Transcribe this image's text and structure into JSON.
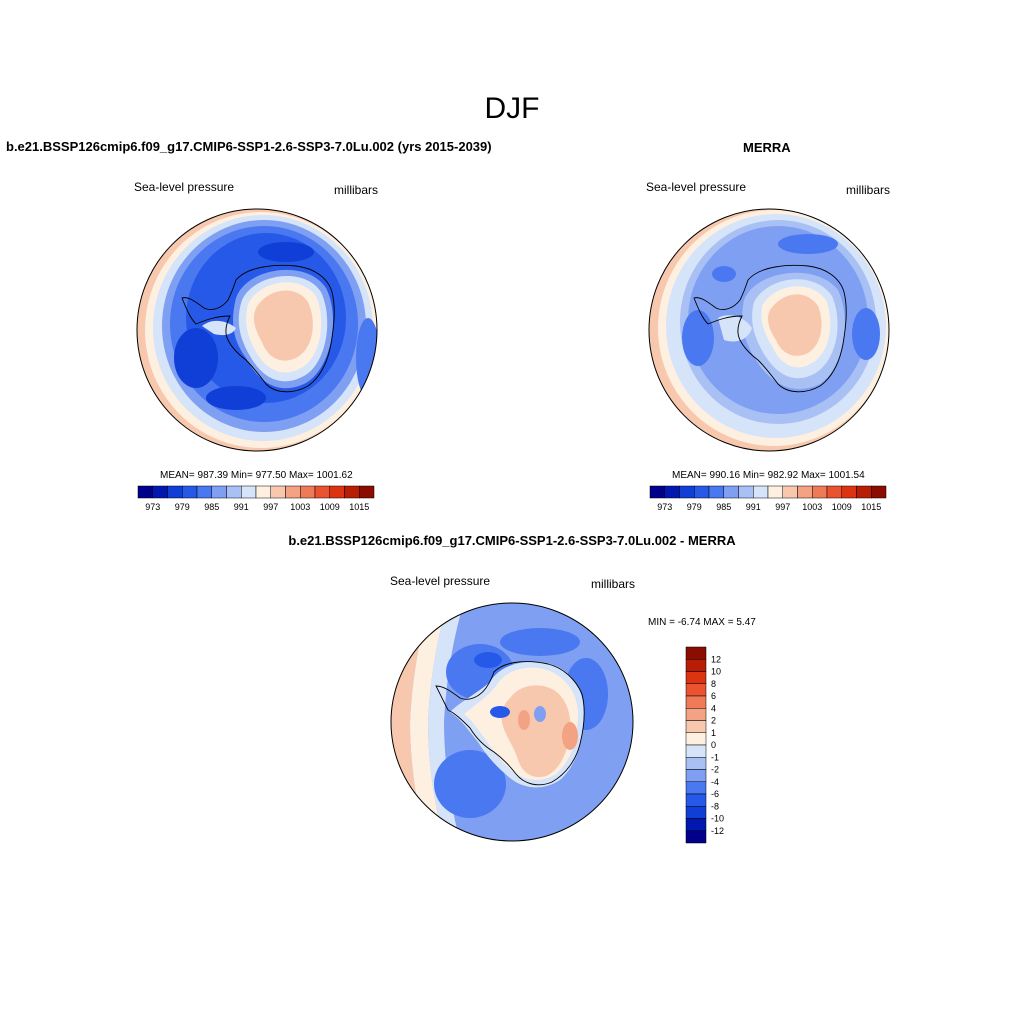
{
  "figure": {
    "title": "DJF"
  },
  "panels": [
    {
      "id": "model",
      "title": "b.e21.BSSP126cmip6.f09_g17.CMIP6-SSP1-2.6-SSP3-7.0Lu.002 (yrs 2015-2039)",
      "variable": "Sea-level pressure",
      "units": "millibars",
      "stats": "MEAN= 987.39  Min= 977.50  Max= 1001.62"
    },
    {
      "id": "obs",
      "title": "MERRA",
      "variable": "Sea-level pressure",
      "units": "millibars",
      "stats": "MEAN= 990.16  Min= 982.92  Max= 1001.54"
    },
    {
      "id": "diff",
      "title": "b.e21.BSSP126cmip6.f09_g17.CMIP6-SSP1-2.6-SSP3-7.0Lu.002 - MERRA",
      "variable": "Sea-level pressure",
      "units": "millibars",
      "stats": "MIN =  -6.74 MAX =   5.47"
    }
  ],
  "colorbar_abs": {
    "labels": [
      "973",
      "979",
      "985",
      "991",
      "997",
      "1003",
      "1009",
      "1015"
    ],
    "colors": [
      "#00008b",
      "#0018b0",
      "#0f3fd6",
      "#2659e8",
      "#4a78f0",
      "#7fa0f2",
      "#a9c0f5",
      "#d6e4f9",
      "#fdf0e0",
      "#f7c8ad",
      "#f3a283",
      "#ee7a58",
      "#ea5230",
      "#dc3310",
      "#b81e06",
      "#8b0c00"
    ]
  },
  "colorbar_diff": {
    "labels": [
      "12",
      "10",
      "8",
      "6",
      "4",
      "2",
      "1",
      "0",
      "-1",
      "-2",
      "-4",
      "-6",
      "-8",
      "-10",
      "-12"
    ],
    "colors": [
      "#8b0c00",
      "#b81e06",
      "#dc3310",
      "#ea5230",
      "#ee7a58",
      "#f3a283",
      "#f7c8ad",
      "#fdf0e0",
      "#d6e4f9",
      "#a9c0f5",
      "#7fa0f2",
      "#4a78f0",
      "#2659e8",
      "#0f3fd6",
      "#0018b0",
      "#00008b"
    ]
  }
}
